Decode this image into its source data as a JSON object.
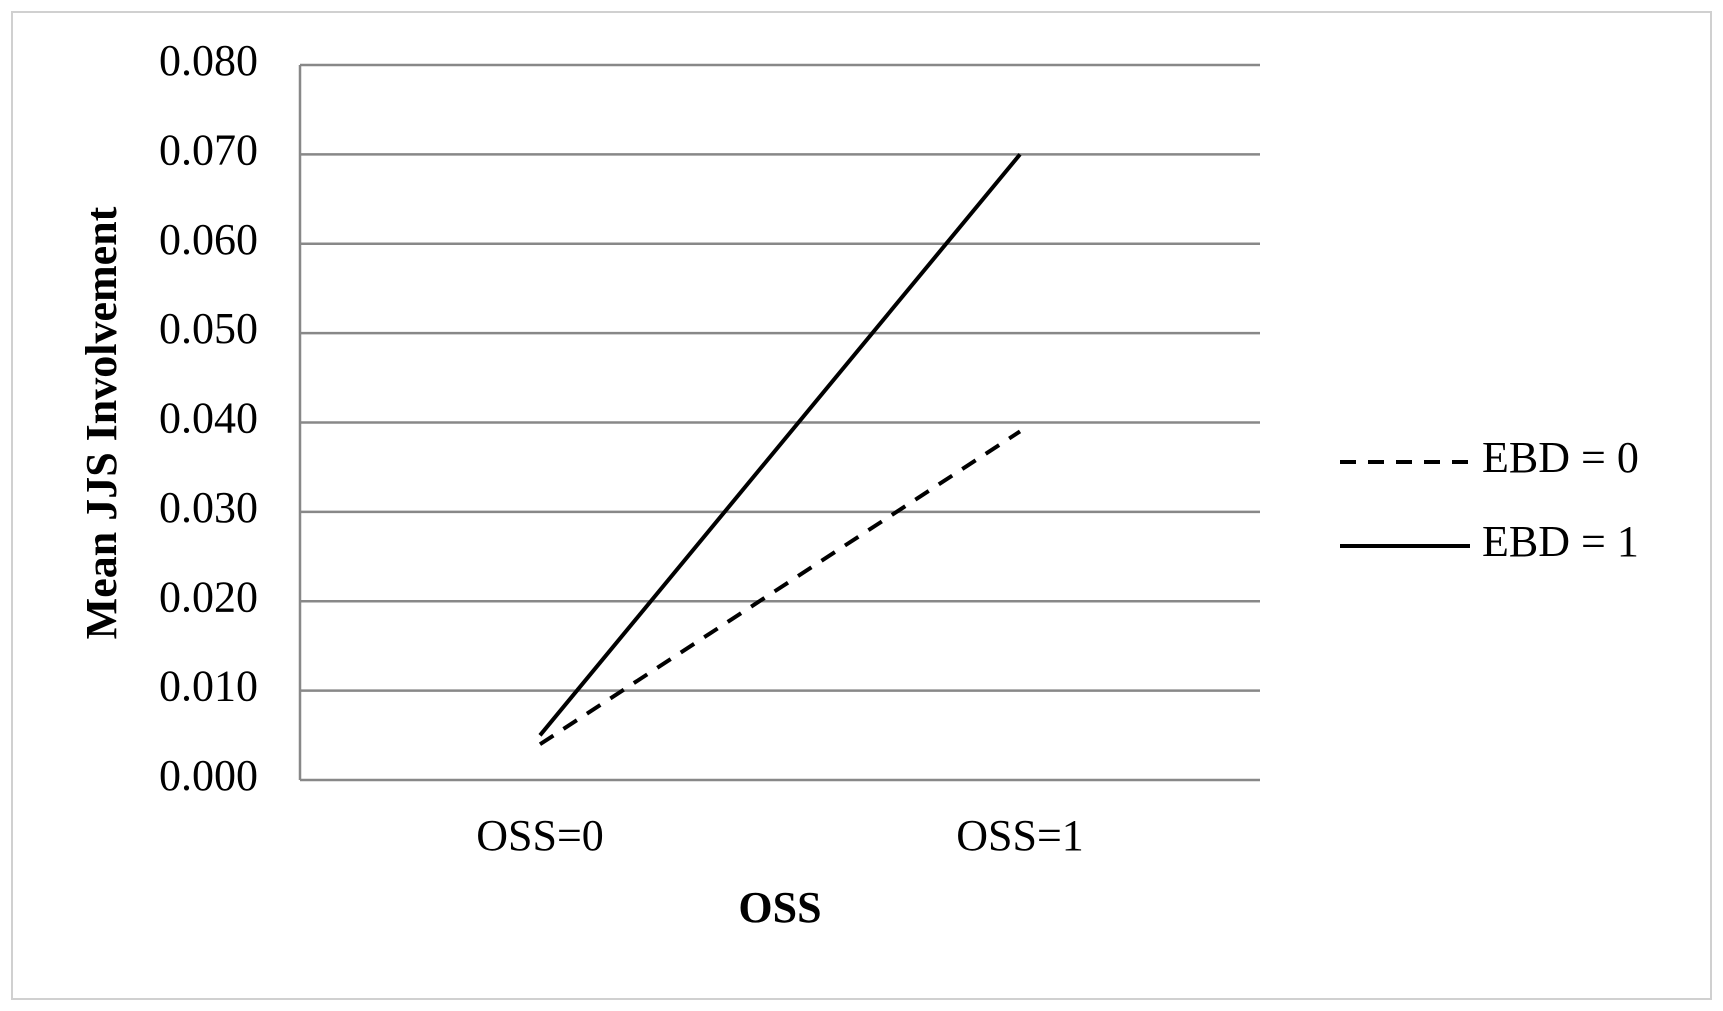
{
  "chart_data": {
    "type": "line",
    "x_label": "OSS",
    "y_label": "Mean JJS Involvement",
    "categories": [
      "OSS=0",
      "OSS=1"
    ],
    "series": [
      {
        "name": "EBD = 0",
        "color": "#000000",
        "dashed": true,
        "values": [
          0.004,
          0.039
        ]
      },
      {
        "name": "EBD = 1",
        "color": "#000000",
        "dashed": false,
        "values": [
          0.005,
          0.07
        ]
      }
    ],
    "ylim": [
      0,
      0.08
    ],
    "yticks": [
      {
        "value": 0,
        "label": "0.000"
      },
      {
        "value": 0.01,
        "label": "0.010"
      },
      {
        "value": 0.02,
        "label": "0.020"
      },
      {
        "value": 0.03,
        "label": "0.030"
      },
      {
        "value": 0.04,
        "label": "0.040"
      },
      {
        "value": 0.05,
        "label": "0.050"
      },
      {
        "value": 0.06,
        "label": "0.060"
      },
      {
        "value": 0.07,
        "label": "0.070"
      },
      {
        "value": 0.08,
        "label": "0.080"
      }
    ],
    "grid": true,
    "legend": "right"
  }
}
